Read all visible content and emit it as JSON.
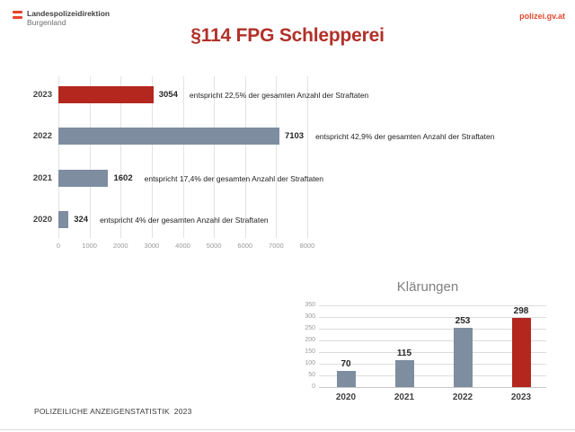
{
  "header": {
    "logo": {
      "org": "Landespolizeidirektion",
      "region": "Burgenland"
    },
    "website": "polizei.gv.at",
    "title": "§114 FPG Schlepperei"
  },
  "footer": {
    "label": "POLIZEILICHE ANZEIGENSTATISTIK  2023"
  },
  "colors": {
    "accent_red": "#b3271e",
    "bar_gray": "#7e8da0",
    "title_red": "#b13129",
    "link_red": "#e2492f",
    "grid": "#e3e3e3",
    "text_dark": "#3f3f3f",
    "axis_text": "#9a9a9a"
  },
  "chart_data": [
    {
      "type": "bar",
      "orientation": "horizontal",
      "title": "",
      "categories": [
        "2023",
        "2022",
        "2021",
        "2020"
      ],
      "values": [
        3054,
        7103,
        1602,
        324
      ],
      "bar_colors": [
        "#b3271e",
        "#7e8da0",
        "#7e8da0",
        "#7e8da0"
      ],
      "annotations": [
        "entspricht 22,5% der gesamten Anzahl der Straftaten",
        "entspricht 42,9% der gesamten Anzahl der Straftaten",
        "entspricht 17,4% der gesamten Anzahl der Straftaten",
        "entspricht 4% der gesamten Anzahl der Straftaten"
      ],
      "xlim": [
        0,
        8000
      ],
      "x_ticks": [
        0,
        1000,
        2000,
        3000,
        4000,
        5000,
        6000,
        7000,
        8000
      ],
      "grid": "vertical",
      "legend": "none"
    },
    {
      "type": "bar",
      "orientation": "vertical",
      "title": "Klärungen",
      "categories": [
        "2020",
        "2021",
        "2022",
        "2023"
      ],
      "values": [
        70,
        115,
        253,
        298
      ],
      "bar_colors": [
        "#7e8da0",
        "#7e8da0",
        "#7e8da0",
        "#b3271e"
      ],
      "ylim": [
        0,
        350
      ],
      "y_ticks": [
        0,
        50,
        100,
        150,
        200,
        250,
        300,
        350
      ],
      "grid": "horizontal",
      "legend": "none"
    }
  ]
}
